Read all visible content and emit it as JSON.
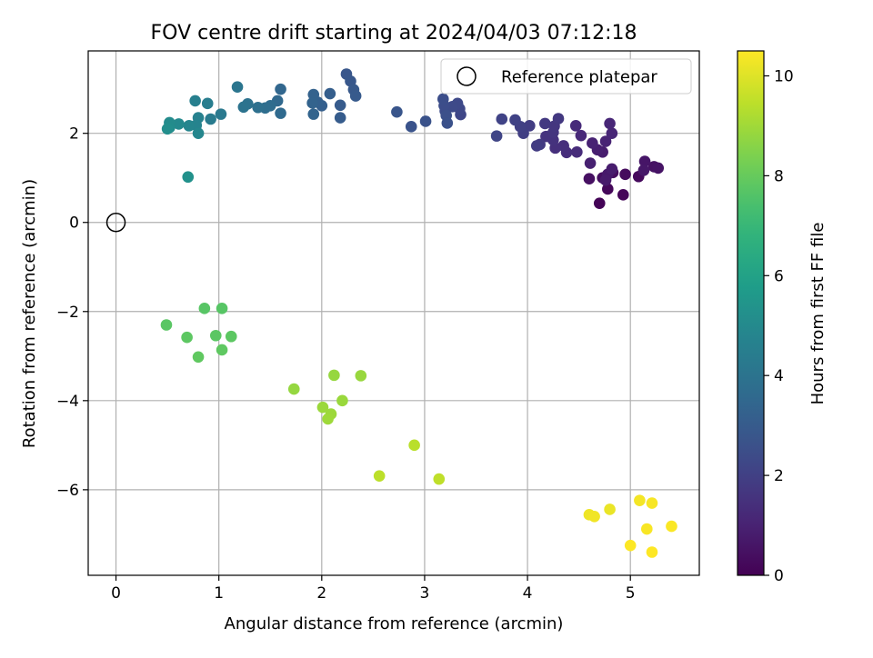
{
  "chart_data": {
    "type": "scatter",
    "title": "FOV centre drift starting at 2024/04/03 07:12:18",
    "xlabel": "Angular distance from reference (arcmin)",
    "ylabel": "Rotation from reference (arcmin)",
    "xlim": [
      -0.27,
      5.67
    ],
    "ylim": [
      -7.92,
      3.85
    ],
    "xticks": [
      0,
      1,
      2,
      3,
      4,
      5
    ],
    "yticks": [
      -6,
      -4,
      -2,
      0,
      2
    ],
    "grid": true,
    "legend": {
      "entries": [
        "Reference platepar"
      ],
      "position": "top-right"
    },
    "reference": {
      "name": "Reference platepar",
      "x": 0,
      "y": 0,
      "marker": "open-circle"
    },
    "colorbar": {
      "label": "Hours from first FF file",
      "range": [
        0,
        10.5
      ],
      "ticks": [
        0,
        2,
        4,
        6,
        8,
        10
      ],
      "colormap": "viridis"
    },
    "points": [
      {
        "x": 4.7,
        "y": 0.43,
        "h": 0.1
      },
      {
        "x": 4.93,
        "y": 0.62,
        "h": 0.15
      },
      {
        "x": 4.78,
        "y": 0.75,
        "h": 0.2
      },
      {
        "x": 5.08,
        "y": 1.03,
        "h": 0.25
      },
      {
        "x": 4.95,
        "y": 1.08,
        "h": 0.3
      },
      {
        "x": 4.83,
        "y": 1.12,
        "h": 0.35
      },
      {
        "x": 4.73,
        "y": 1.0,
        "h": 0.4
      },
      {
        "x": 4.6,
        "y": 0.98,
        "h": 0.45
      },
      {
        "x": 5.23,
        "y": 1.25,
        "h": 0.5
      },
      {
        "x": 5.27,
        "y": 1.22,
        "h": 0.55
      },
      {
        "x": 5.14,
        "y": 1.37,
        "h": 0.6
      },
      {
        "x": 5.13,
        "y": 1.17,
        "h": 0.65
      },
      {
        "x": 4.78,
        "y": 1.08,
        "h": 0.7
      },
      {
        "x": 4.76,
        "y": 0.95,
        "h": 0.75
      },
      {
        "x": 4.82,
        "y": 1.2,
        "h": 0.8
      },
      {
        "x": 4.73,
        "y": 1.58,
        "h": 0.85
      },
      {
        "x": 4.68,
        "y": 1.63,
        "h": 0.9
      },
      {
        "x": 4.61,
        "y": 1.33,
        "h": 0.95
      },
      {
        "x": 4.63,
        "y": 1.78,
        "h": 1.0
      },
      {
        "x": 4.76,
        "y": 1.82,
        "h": 1.05
      },
      {
        "x": 4.82,
        "y": 2.0,
        "h": 1.1
      },
      {
        "x": 4.8,
        "y": 2.22,
        "h": 1.15
      },
      {
        "x": 4.52,
        "y": 1.95,
        "h": 1.2
      },
      {
        "x": 4.47,
        "y": 2.17,
        "h": 1.25
      },
      {
        "x": 4.48,
        "y": 1.58,
        "h": 1.3
      },
      {
        "x": 4.38,
        "y": 1.57,
        "h": 1.35
      },
      {
        "x": 4.35,
        "y": 1.72,
        "h": 1.4
      },
      {
        "x": 4.27,
        "y": 1.67,
        "h": 1.45
      },
      {
        "x": 4.25,
        "y": 1.85,
        "h": 1.5
      },
      {
        "x": 4.18,
        "y": 1.93,
        "h": 1.55
      },
      {
        "x": 4.25,
        "y": 2.02,
        "h": 1.6
      },
      {
        "x": 4.26,
        "y": 2.16,
        "h": 1.65
      },
      {
        "x": 4.3,
        "y": 2.33,
        "h": 1.7
      },
      {
        "x": 4.17,
        "y": 2.22,
        "h": 1.75
      },
      {
        "x": 4.12,
        "y": 1.75,
        "h": 1.8
      },
      {
        "x": 4.09,
        "y": 1.72,
        "h": 1.85
      },
      {
        "x": 4.02,
        "y": 2.17,
        "h": 1.9
      },
      {
        "x": 3.96,
        "y": 2.0,
        "h": 1.95
      },
      {
        "x": 3.93,
        "y": 2.15,
        "h": 2.0
      },
      {
        "x": 3.88,
        "y": 2.3,
        "h": 2.05
      },
      {
        "x": 3.75,
        "y": 2.32,
        "h": 2.1
      },
      {
        "x": 3.7,
        "y": 1.94,
        "h": 2.15
      },
      {
        "x": 3.35,
        "y": 2.42,
        "h": 2.2
      },
      {
        "x": 3.34,
        "y": 2.55,
        "h": 2.25
      },
      {
        "x": 3.32,
        "y": 2.67,
        "h": 2.3
      },
      {
        "x": 3.27,
        "y": 2.6,
        "h": 2.35
      },
      {
        "x": 3.2,
        "y": 2.5,
        "h": 2.4
      },
      {
        "x": 3.19,
        "y": 2.62,
        "h": 2.45
      },
      {
        "x": 3.18,
        "y": 2.77,
        "h": 2.5
      },
      {
        "x": 3.21,
        "y": 2.4,
        "h": 2.55
      },
      {
        "x": 3.22,
        "y": 2.23,
        "h": 2.6
      },
      {
        "x": 3.01,
        "y": 2.27,
        "h": 2.65
      },
      {
        "x": 2.87,
        "y": 2.15,
        "h": 2.7
      },
      {
        "x": 2.73,
        "y": 2.48,
        "h": 2.75
      },
      {
        "x": 2.24,
        "y": 3.33,
        "h": 2.8
      },
      {
        "x": 2.28,
        "y": 3.17,
        "h": 2.85
      },
      {
        "x": 2.31,
        "y": 2.98,
        "h": 2.9
      },
      {
        "x": 2.33,
        "y": 2.84,
        "h": 2.95
      },
      {
        "x": 2.18,
        "y": 2.63,
        "h": 3.0
      },
      {
        "x": 2.18,
        "y": 2.35,
        "h": 3.05
      },
      {
        "x": 2.08,
        "y": 2.89,
        "h": 3.1
      },
      {
        "x": 2.0,
        "y": 2.62,
        "h": 3.15
      },
      {
        "x": 1.96,
        "y": 2.7,
        "h": 3.2
      },
      {
        "x": 1.92,
        "y": 2.87,
        "h": 3.25
      },
      {
        "x": 1.91,
        "y": 2.68,
        "h": 3.3
      },
      {
        "x": 1.92,
        "y": 2.43,
        "h": 3.35
      },
      {
        "x": 1.6,
        "y": 2.99,
        "h": 3.45
      },
      {
        "x": 1.57,
        "y": 2.73,
        "h": 3.55
      },
      {
        "x": 1.6,
        "y": 2.45,
        "h": 3.6
      },
      {
        "x": 1.5,
        "y": 2.62,
        "h": 3.7
      },
      {
        "x": 1.45,
        "y": 2.57,
        "h": 3.75
      },
      {
        "x": 1.38,
        "y": 2.58,
        "h": 3.85
      },
      {
        "x": 1.28,
        "y": 2.66,
        "h": 3.95
      },
      {
        "x": 1.24,
        "y": 2.59,
        "h": 4.0
      },
      {
        "x": 1.18,
        "y": 3.04,
        "h": 4.1
      },
      {
        "x": 1.02,
        "y": 2.43,
        "h": 4.25
      },
      {
        "x": 0.92,
        "y": 2.32,
        "h": 4.35
      },
      {
        "x": 0.89,
        "y": 2.67,
        "h": 4.45
      },
      {
        "x": 0.77,
        "y": 2.73,
        "h": 4.55
      },
      {
        "x": 0.8,
        "y": 2.35,
        "h": 4.6
      },
      {
        "x": 0.78,
        "y": 2.18,
        "h": 4.7
      },
      {
        "x": 0.71,
        "y": 2.17,
        "h": 4.8
      },
      {
        "x": 0.8,
        "y": 2.0,
        "h": 4.85
      },
      {
        "x": 0.61,
        "y": 2.21,
        "h": 4.95
      },
      {
        "x": 0.52,
        "y": 2.24,
        "h": 5.05
      },
      {
        "x": 0.52,
        "y": 2.13,
        "h": 5.1
      },
      {
        "x": 0.5,
        "y": 2.1,
        "h": 5.15
      },
      {
        "x": 0.7,
        "y": 1.02,
        "h": 5.3
      },
      {
        "x": 1.03,
        "y": -1.93,
        "h": 7.7
      },
      {
        "x": 0.86,
        "y": -1.93,
        "h": 7.72
      },
      {
        "x": 0.49,
        "y": -2.3,
        "h": 7.75
      },
      {
        "x": 0.97,
        "y": -2.54,
        "h": 7.78
      },
      {
        "x": 1.12,
        "y": -2.56,
        "h": 7.8
      },
      {
        "x": 0.69,
        "y": -2.58,
        "h": 7.82
      },
      {
        "x": 1.03,
        "y": -2.86,
        "h": 7.85
      },
      {
        "x": 0.8,
        "y": -3.02,
        "h": 7.88
      },
      {
        "x": 1.73,
        "y": -3.74,
        "h": 8.8
      },
      {
        "x": 2.12,
        "y": -3.43,
        "h": 8.82
      },
      {
        "x": 2.38,
        "y": -3.44,
        "h": 8.85
      },
      {
        "x": 2.2,
        "y": -4.0,
        "h": 8.88
      },
      {
        "x": 2.01,
        "y": -4.15,
        "h": 8.9
      },
      {
        "x": 2.09,
        "y": -4.3,
        "h": 8.92
      },
      {
        "x": 2.06,
        "y": -4.41,
        "h": 8.95
      },
      {
        "x": 2.9,
        "y": -5.0,
        "h": 9.4
      },
      {
        "x": 2.56,
        "y": -5.69,
        "h": 9.45
      },
      {
        "x": 3.14,
        "y": -5.76,
        "h": 9.5
      },
      {
        "x": 4.8,
        "y": -6.44,
        "h": 10.2
      },
      {
        "x": 4.6,
        "y": -6.56,
        "h": 10.25
      },
      {
        "x": 4.65,
        "y": -6.6,
        "h": 10.3
      },
      {
        "x": 5.09,
        "y": -6.24,
        "h": 10.35
      },
      {
        "x": 5.21,
        "y": -6.3,
        "h": 10.4
      },
      {
        "x": 5.16,
        "y": -6.88,
        "h": 10.42
      },
      {
        "x": 5.4,
        "y": -6.82,
        "h": 10.45
      },
      {
        "x": 5.0,
        "y": -7.25,
        "h": 10.48
      },
      {
        "x": 5.21,
        "y": -7.4,
        "h": 10.5
      }
    ]
  }
}
